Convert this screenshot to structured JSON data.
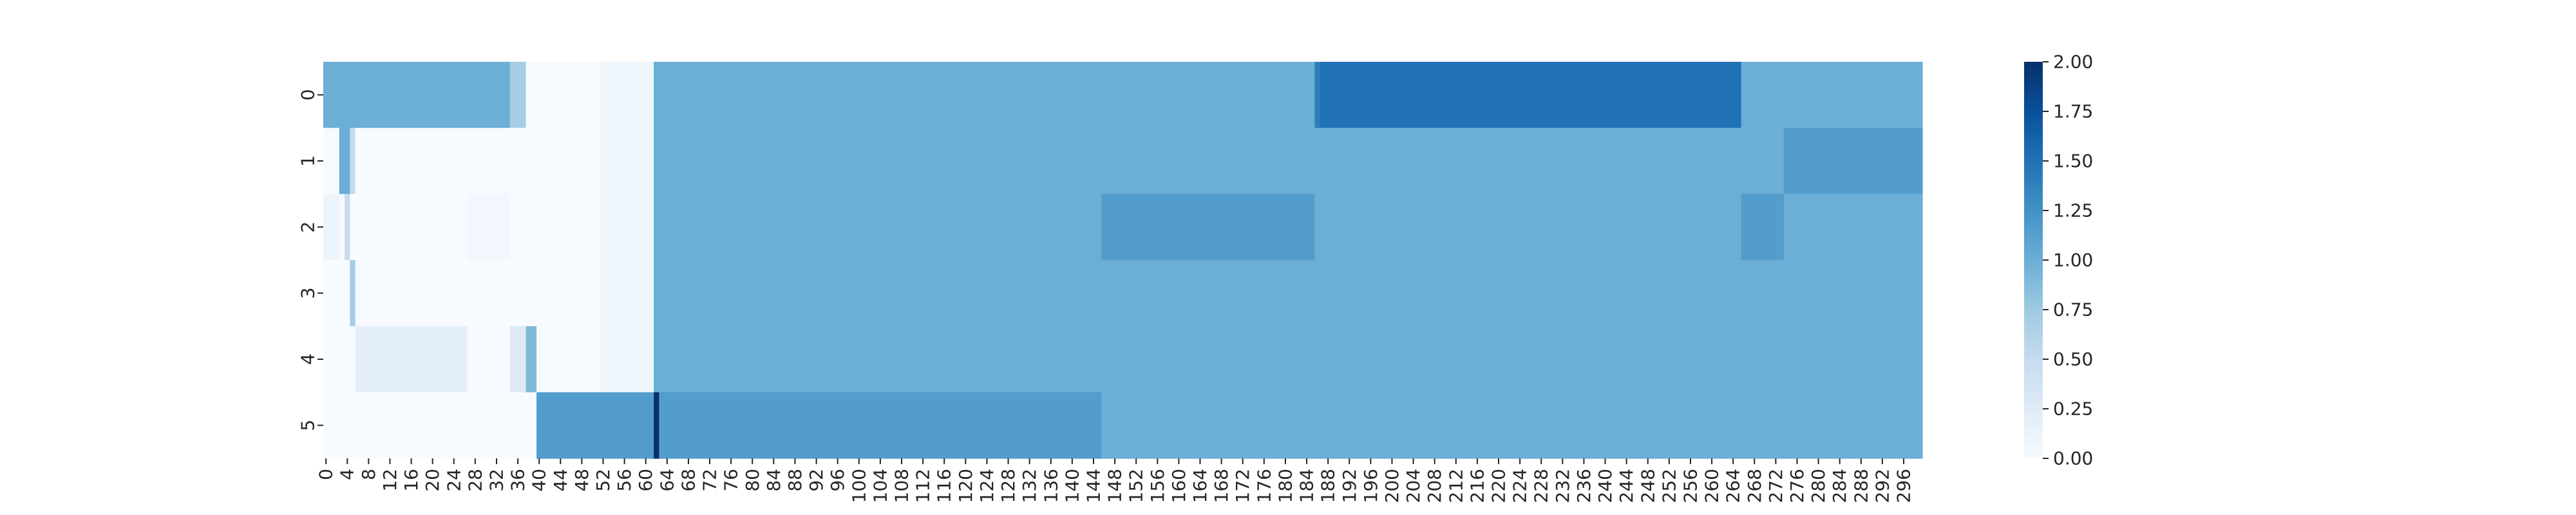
{
  "chart_data": {
    "type": "heatmap",
    "title": "",
    "xlabel": "",
    "ylabel": "",
    "rows": [
      "0",
      "1",
      "2",
      "3",
      "4",
      "5"
    ],
    "x_range": [
      0,
      299
    ],
    "x_tick_step": 4,
    "colorscale": "Blues",
    "vmin": 0,
    "vmax": 2,
    "colorbar_ticks": [
      "0.00",
      "0.25",
      "0.50",
      "0.75",
      "1.00",
      "1.25",
      "1.50",
      "1.75",
      "2.00"
    ],
    "colorbar_tick_values": [
      0,
      0.25,
      0.5,
      0.75,
      1.0,
      1.25,
      1.5,
      1.75,
      2.0
    ],
    "segments": [
      [
        {
          "start": 0,
          "end": 2,
          "value": 1.0
        },
        {
          "start": 3,
          "end": 34,
          "value": 1.0
        },
        {
          "start": 35,
          "end": 37,
          "value": 0.7
        },
        {
          "start": 38,
          "end": 51,
          "value": 0.0
        },
        {
          "start": 52,
          "end": 61,
          "value": 0.08
        },
        {
          "start": 62,
          "end": 185,
          "value": 1.0
        },
        {
          "start": 186,
          "end": 186,
          "value": 1.4
        },
        {
          "start": 187,
          "end": 265,
          "value": 1.5
        },
        {
          "start": 266,
          "end": 299,
          "value": 1.0
        }
      ],
      [
        {
          "start": 0,
          "end": 2,
          "value": 0.0
        },
        {
          "start": 3,
          "end": 4,
          "value": 1.0
        },
        {
          "start": 5,
          "end": 5,
          "value": 0.5
        },
        {
          "start": 6,
          "end": 51,
          "value": 0.0
        },
        {
          "start": 52,
          "end": 61,
          "value": 0.08
        },
        {
          "start": 62,
          "end": 273,
          "value": 1.0
        },
        {
          "start": 274,
          "end": 299,
          "value": 1.15
        }
      ],
      [
        {
          "start": 0,
          "end": 2,
          "value": 0.1
        },
        {
          "start": 3,
          "end": 3,
          "value": 0.0
        },
        {
          "start": 4,
          "end": 4,
          "value": 0.5
        },
        {
          "start": 5,
          "end": 26,
          "value": 0.0
        },
        {
          "start": 27,
          "end": 34,
          "value": 0.06
        },
        {
          "start": 35,
          "end": 51,
          "value": 0.0
        },
        {
          "start": 52,
          "end": 61,
          "value": 0.08
        },
        {
          "start": 62,
          "end": 145,
          "value": 1.0
        },
        {
          "start": 146,
          "end": 185,
          "value": 1.15
        },
        {
          "start": 186,
          "end": 265,
          "value": 1.0
        },
        {
          "start": 266,
          "end": 273,
          "value": 1.15
        },
        {
          "start": 274,
          "end": 299,
          "value": 1.0
        }
      ],
      [
        {
          "start": 0,
          "end": 4,
          "value": 0.0
        },
        {
          "start": 5,
          "end": 5,
          "value": 0.7
        },
        {
          "start": 6,
          "end": 51,
          "value": 0.0
        },
        {
          "start": 52,
          "end": 61,
          "value": 0.08
        },
        {
          "start": 62,
          "end": 299,
          "value": 1.0
        }
      ],
      [
        {
          "start": 0,
          "end": 5,
          "value": 0.0
        },
        {
          "start": 6,
          "end": 26,
          "value": 0.2
        },
        {
          "start": 27,
          "end": 34,
          "value": 0.0
        },
        {
          "start": 35,
          "end": 37,
          "value": 0.25
        },
        {
          "start": 38,
          "end": 39,
          "value": 0.9
        },
        {
          "start": 40,
          "end": 51,
          "value": 0.0
        },
        {
          "start": 52,
          "end": 61,
          "value": 0.08
        },
        {
          "start": 62,
          "end": 299,
          "value": 1.0
        }
      ],
      [
        {
          "start": 0,
          "end": 39,
          "value": 0.0
        },
        {
          "start": 40,
          "end": 61,
          "value": 1.15
        },
        {
          "start": 62,
          "end": 62,
          "value": 2.0
        },
        {
          "start": 63,
          "end": 145,
          "value": 1.15
        },
        {
          "start": 146,
          "end": 299,
          "value": 1.0
        }
      ]
    ]
  }
}
